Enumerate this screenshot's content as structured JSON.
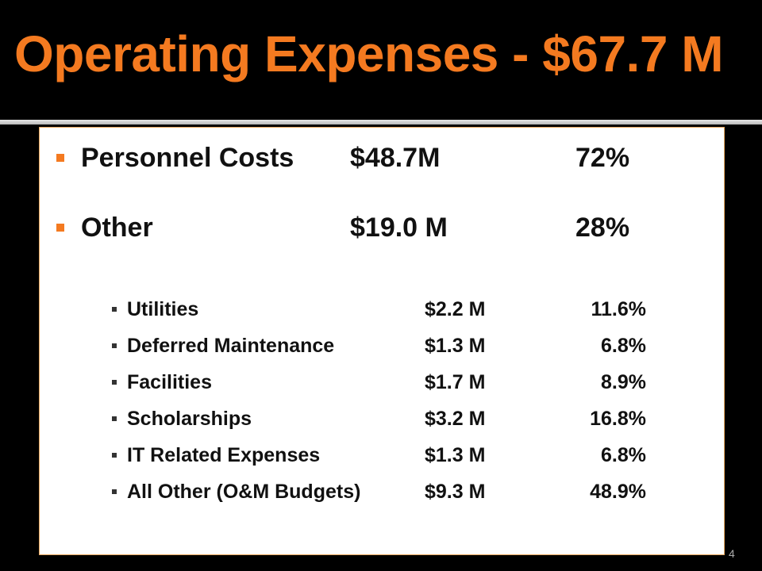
{
  "title": "Operating Expenses - $67.7 M",
  "main_items": [
    {
      "label": "Personnel Costs",
      "amount": "$48.7M",
      "percent": "72%"
    },
    {
      "label": "Other",
      "amount": "$19.0 M",
      "percent": "28%"
    }
  ],
  "sub_items": [
    {
      "label": "Utilities",
      "amount": "$2.2 M",
      "percent": "11.6%"
    },
    {
      "label": "Deferred Maintenance",
      "amount": "$1.3 M",
      "percent": "6.8%"
    },
    {
      "label": "Facilities",
      "amount": "$1.7 M",
      "percent": "8.9%"
    },
    {
      "label": "Scholarships",
      "amount": "$3.2 M",
      "percent": "16.8%"
    },
    {
      "label": "IT Related Expenses",
      "amount": "$1.3 M",
      "percent": "6.8%"
    },
    {
      "label": "All Other (O&M Budgets)",
      "amount": "$9.3 M",
      "percent": "48.9%"
    }
  ],
  "page_number": "4",
  "colors": {
    "accent": "#f47a20",
    "background": "#000000",
    "content_background": "#ffffff",
    "content_border": "#e8a860"
  }
}
